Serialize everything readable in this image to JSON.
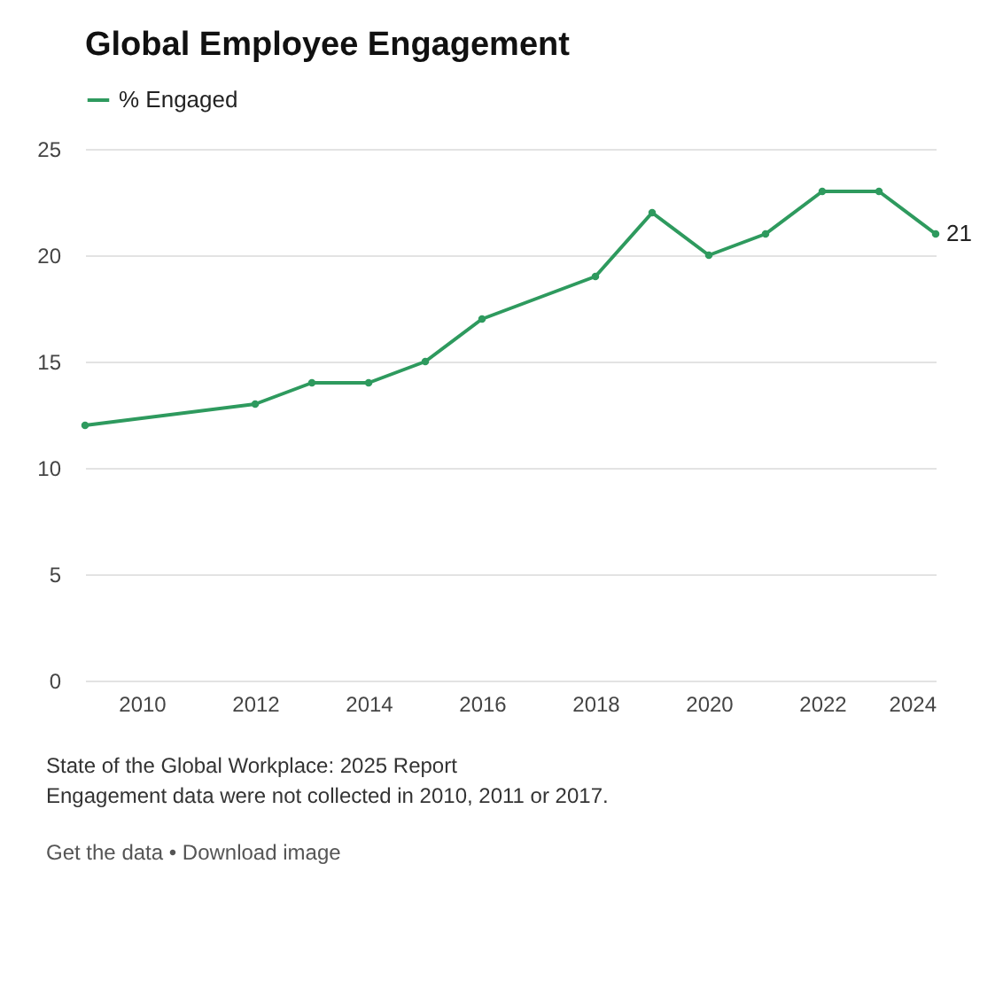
{
  "chart_data": {
    "type": "line",
    "title": "Global Employee Engagement",
    "x": [
      2009,
      2012,
      2013,
      2014,
      2015,
      2016,
      2018,
      2019,
      2020,
      2021,
      2022,
      2023,
      2024
    ],
    "series": [
      {
        "name": "% Engaged",
        "color": "#2e9a5e",
        "values": [
          12,
          13,
          14,
          14,
          15,
          17,
          19,
          22,
          20,
          21,
          23,
          23,
          21
        ],
        "value_labels": [
          null,
          null,
          null,
          null,
          null,
          null,
          null,
          null,
          null,
          null,
          null,
          null,
          "21"
        ]
      }
    ],
    "xlim": [
      2009,
      2024
    ],
    "xticks": [
      2010,
      2012,
      2014,
      2016,
      2018,
      2020,
      2022,
      2024
    ],
    "ylim": [
      0,
      25
    ],
    "yticks": [
      0,
      5,
      10,
      15,
      20,
      25
    ],
    "grid": "y",
    "legend": "top left",
    "marker": "circle",
    "annotations": [
      "State of the Global Workplace: 2025 Report",
      "Engagement data were not collected in 2010, 2011 or 2017.",
      "Get the data • Download image"
    ]
  }
}
